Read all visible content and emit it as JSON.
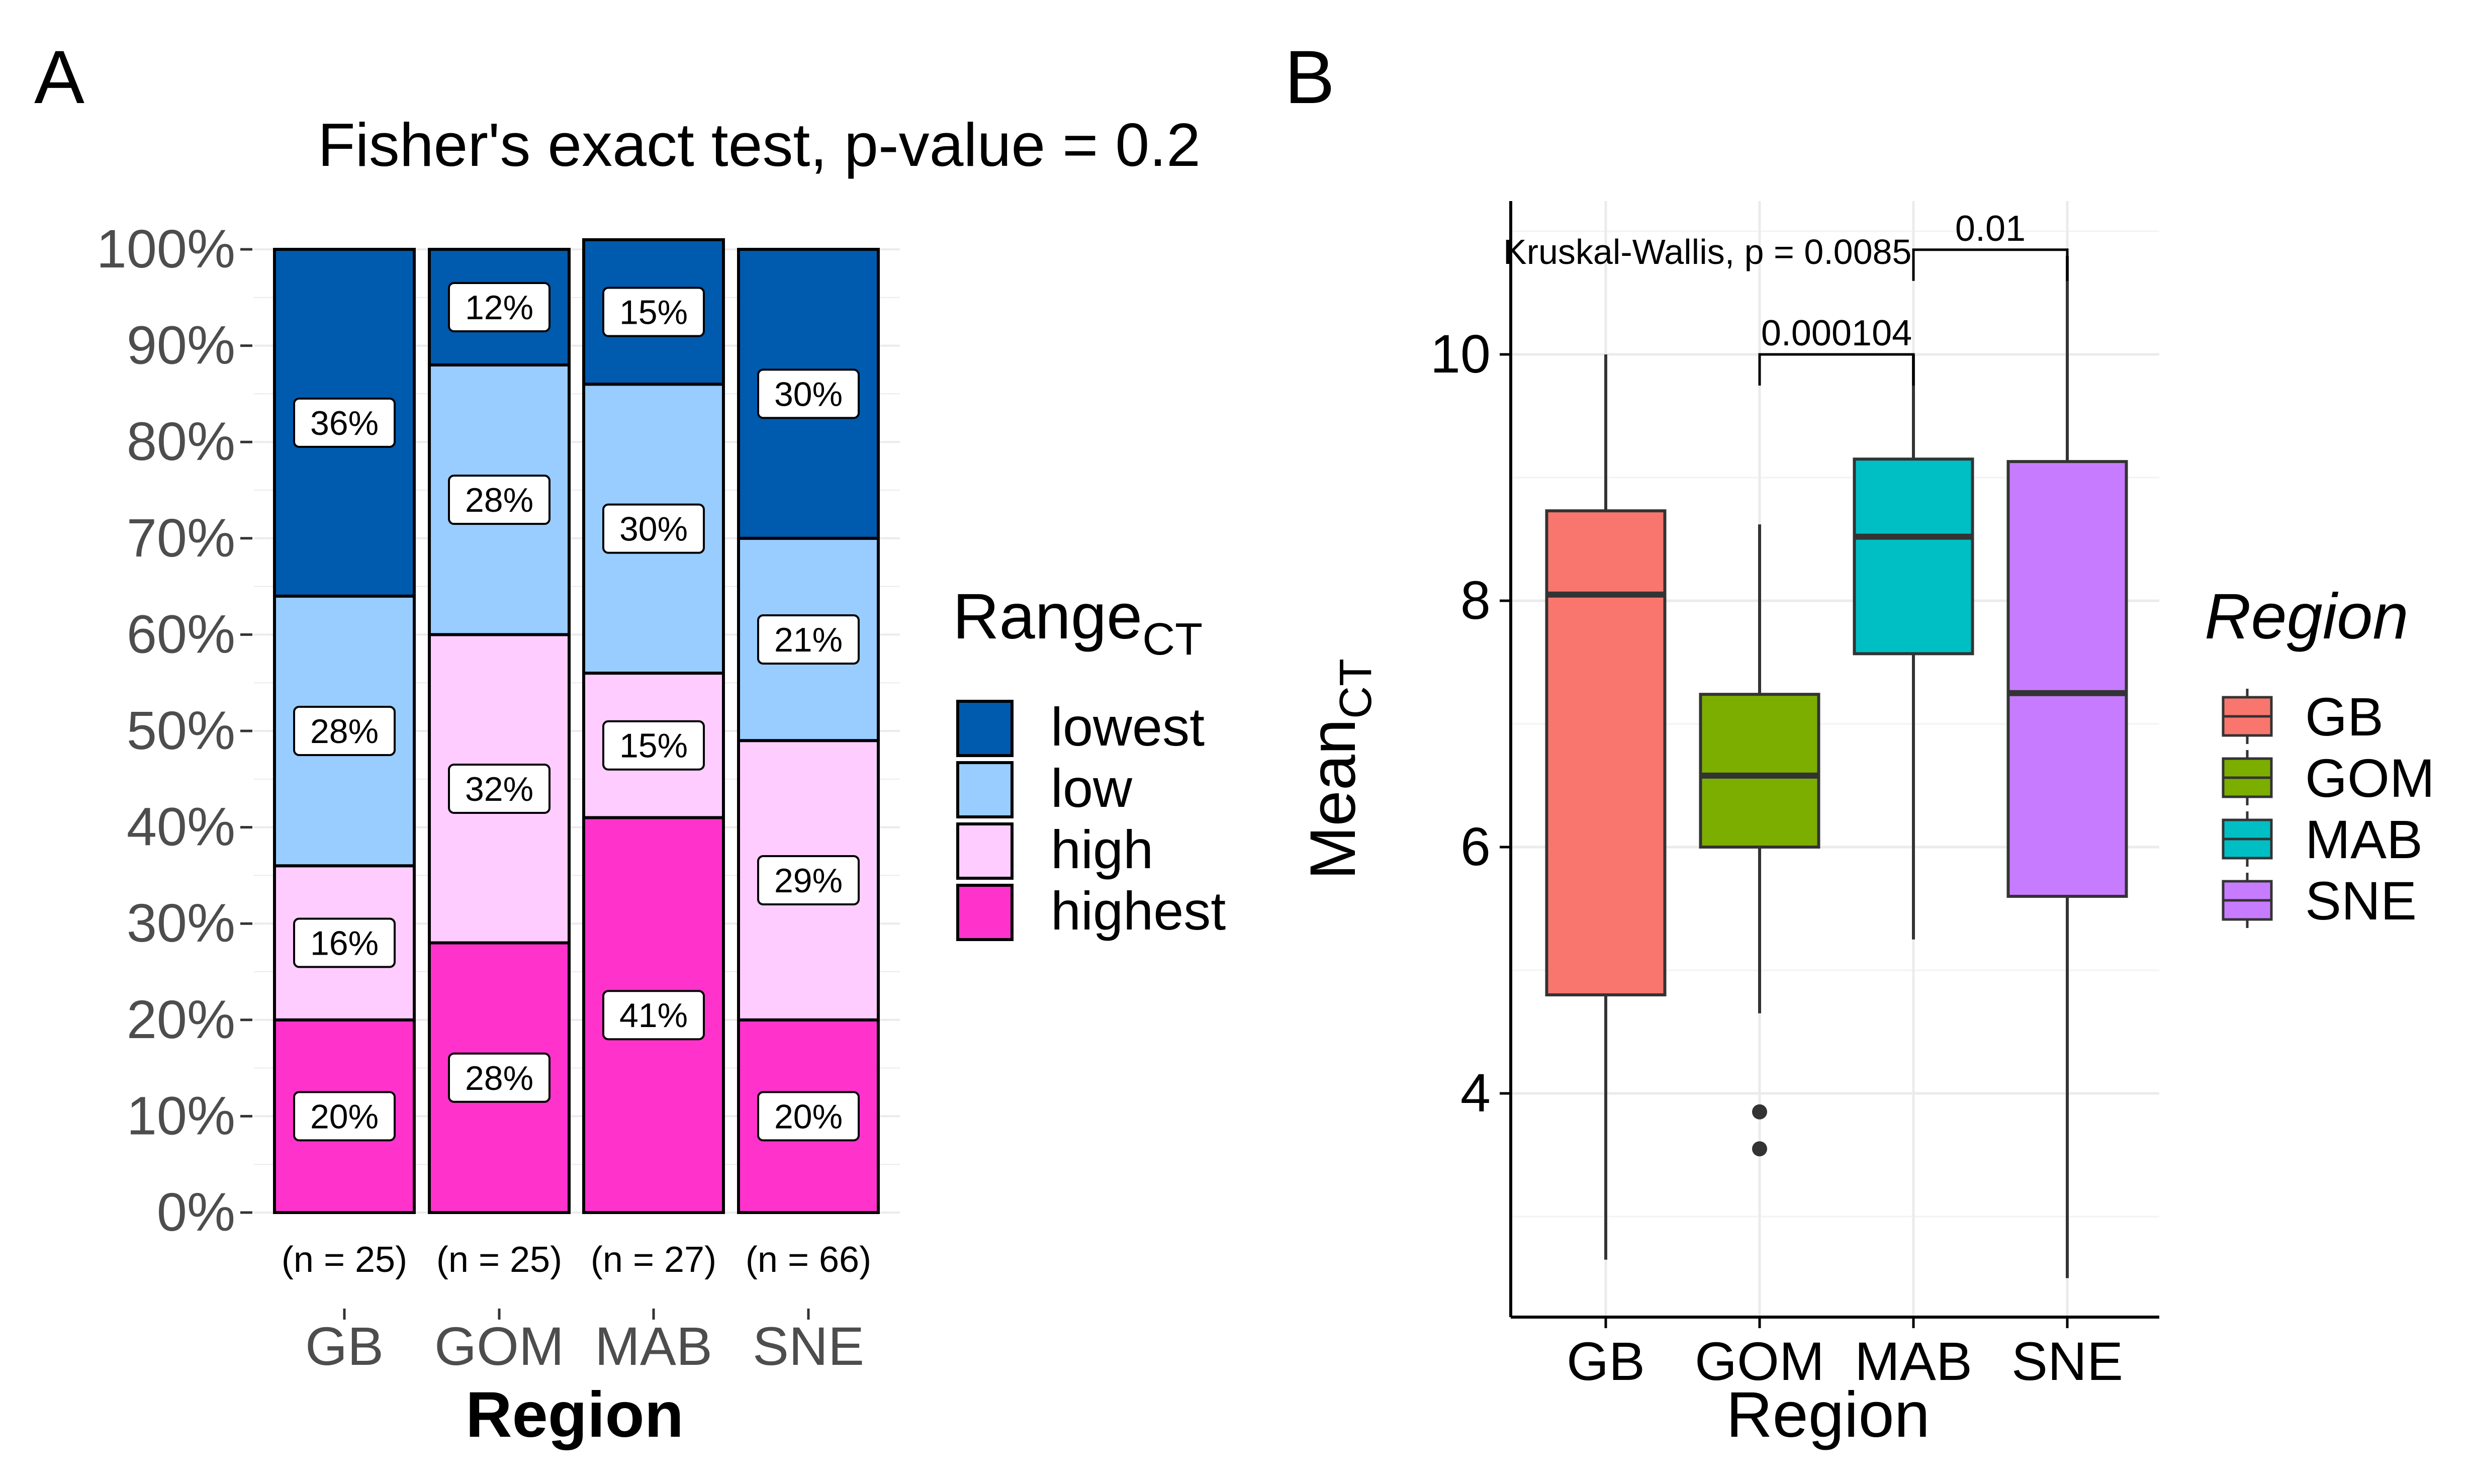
{
  "panels": {
    "a": {
      "letter": "A",
      "title": "Fisher's exact test, p-value = 0.2",
      "xlabel": "Region",
      "legend": {
        "title_main": "Range",
        "title_sub": "CT"
      }
    },
    "b": {
      "letter": "B",
      "xlabel": "Region",
      "ylabel_main": "Mean",
      "ylabel_sub": "CT",
      "legend": {
        "title": "Region"
      },
      "test_label": "Kruskal-Wallis, p = 0.0085"
    }
  },
  "chart_data": [
    {
      "type": "bar",
      "stacked": true,
      "title": "Fisher's exact test, p-value = 0.2",
      "xlabel": "Region",
      "ylabel": "",
      "categories": [
        "GB",
        "GOM",
        "MAB",
        "SNE"
      ],
      "n_labels": [
        "(n = 25)",
        "(n = 25)",
        "(n = 27)",
        "(n = 66)"
      ],
      "ylim": [
        0,
        100
      ],
      "yticks": [
        "0%",
        "10%",
        "20%",
        "30%",
        "40%",
        "50%",
        "60%",
        "70%",
        "80%",
        "90%",
        "100%"
      ],
      "legend_title": "RangeCT",
      "legend_position": "right",
      "grid": true,
      "series": [
        {
          "name": "highest",
          "color": "#FF33CC",
          "values": [
            20,
            28,
            41,
            20
          ],
          "labels": [
            "20%",
            "28%",
            "41%",
            "20%"
          ]
        },
        {
          "name": "high",
          "color": "#FFCCFF",
          "values": [
            16,
            32,
            15,
            29
          ],
          "labels": [
            "16%",
            "32%",
            "15%",
            "29%"
          ]
        },
        {
          "name": "low",
          "color": "#99CCFF",
          "values": [
            28,
            28,
            30,
            21
          ],
          "labels": [
            "28%",
            "28%",
            "30%",
            "21%"
          ]
        },
        {
          "name": "lowest",
          "color": "#005AAE",
          "values": [
            36,
            12,
            15,
            30
          ],
          "labels": [
            "36%",
            "12%",
            "15%",
            "30%"
          ]
        }
      ],
      "legend_order": [
        "lowest",
        "low",
        "high",
        "highest"
      ]
    },
    {
      "type": "boxplot",
      "xlabel": "Region",
      "ylabel": "MeanCT",
      "categories": [
        "GB",
        "GOM",
        "MAB",
        "SNE"
      ],
      "ylim": [
        2.0,
        11.3
      ],
      "yticks": [
        4,
        6,
        8,
        10
      ],
      "legend_title": "Region",
      "legend_position": "right",
      "grid": true,
      "boxes": [
        {
          "name": "GB",
          "color": "#F8766D",
          "whisker_low": 2.65,
          "q1": 4.8,
          "median": 8.05,
          "q3": 8.73,
          "whisker_high": 10.0,
          "outliers": []
        },
        {
          "name": "GOM",
          "color": "#7CAE00",
          "whisker_low": 4.65,
          "q1": 6.0,
          "median": 6.58,
          "q3": 7.24,
          "whisker_high": 8.62,
          "outliers": [
            3.85,
            3.55
          ]
        },
        {
          "name": "MAB",
          "color": "#00BFC4",
          "whisker_low": 5.25,
          "q1": 7.57,
          "median": 8.52,
          "q3": 9.15,
          "whisker_high": 10.0,
          "outliers": []
        },
        {
          "name": "SNE",
          "color": "#C77CFF",
          "whisker_low": 2.5,
          "q1": 5.6,
          "median": 7.25,
          "q3": 9.13,
          "whisker_high": 10.8,
          "outliers": []
        }
      ],
      "comparisons": [
        {
          "from": "GOM",
          "to": "MAB",
          "label": "0.000104",
          "y": 10.0
        },
        {
          "from": "MAB",
          "to": "SNE",
          "label": "0.01",
          "y": 10.85
        }
      ],
      "test_annotation": "Kruskal-Wallis, p = 0.0085"
    }
  ]
}
